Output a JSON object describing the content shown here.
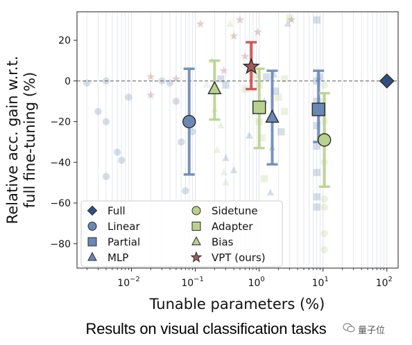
{
  "caption": "Results on visual classification tasks",
  "watermark": "量子位",
  "chart_data": {
    "type": "scatter",
    "title": "",
    "xlabel": "Tunable parameters (%)",
    "ylabel_line1": "Relative acc. gain w.r.t.",
    "ylabel_line2": "full fine-tuning (%)",
    "xscale": "log",
    "xlim": [
      0.0014,
      150
    ],
    "ylim": [
      -92,
      34
    ],
    "xticks": [
      0.01,
      0.1,
      1,
      10,
      100
    ],
    "xtick_labels": [
      {
        "base": "10",
        "exp": "−2"
      },
      {
        "base": "10",
        "exp": "−1"
      },
      {
        "base": "10",
        "exp": "0"
      },
      {
        "base": "10",
        "exp": "1"
      },
      {
        "base": "10",
        "exp": "2"
      }
    ],
    "yticks": [
      20,
      0,
      -20,
      -40,
      -60,
      -80
    ],
    "ytick_labels": [
      "20",
      "0",
      "−20",
      "−40",
      "−60",
      "−80"
    ],
    "reference_line": 0,
    "legend_placement": "lower-left",
    "legend": [
      {
        "label": "Full",
        "marker": "diamond",
        "color": "#2f4f80"
      },
      {
        "label": "Linear",
        "marker": "circle",
        "color": "#6a88b5"
      },
      {
        "label": "Partial",
        "marker": "square",
        "color": "#6a88b5"
      },
      {
        "label": "MLP",
        "marker": "triangle",
        "color": "#6a88b5"
      },
      {
        "label": "Sidetune",
        "marker": "circle",
        "color": "#b8d28e"
      },
      {
        "label": "Adapter",
        "marker": "square",
        "color": "#b8d28e"
      },
      {
        "label": "Bias",
        "marker": "triangle",
        "color": "#b8d28e"
      },
      {
        "label": "VPT (ours)",
        "marker": "star",
        "color": "#a05a5a"
      }
    ],
    "summary_points": [
      {
        "name": "Full",
        "x": 100,
        "y": 0,
        "err_low": 0,
        "err_high": 0,
        "marker": "diamond",
        "fill": "#2f4f80",
        "err_color": "#2f4f80"
      },
      {
        "name": "Linear",
        "x": 0.08,
        "y": -20,
        "err_low": -46,
        "err_high": 6,
        "marker": "circle",
        "fill": "#6a88b5",
        "err_color": "#6a88b5"
      },
      {
        "name": "Partial",
        "x": 8.5,
        "y": -14,
        "err_low": -30,
        "err_high": 5,
        "marker": "square",
        "fill": "#6a88b5",
        "err_color": "#6a88b5"
      },
      {
        "name": "MLP",
        "x": 1.6,
        "y": -18,
        "err_low": -41,
        "err_high": 5,
        "marker": "triangle",
        "fill": "#6a88b5",
        "err_color": "#6a88b5"
      },
      {
        "name": "Sidetune",
        "x": 10.5,
        "y": -29,
        "err_low": -52,
        "err_high": -6,
        "marker": "circle",
        "fill": "#b8d28e",
        "err_color": "#b8d28e"
      },
      {
        "name": "Adapter",
        "x": 1.0,
        "y": -13,
        "err_low": -33,
        "err_high": 6,
        "marker": "square",
        "fill": "#b8d28e",
        "err_color": "#b8d28e"
      },
      {
        "name": "Bias",
        "x": 0.2,
        "y": -4,
        "err_low": -19,
        "err_high": 10,
        "marker": "triangle",
        "fill": "#b8d28e",
        "err_color": "#b8d28e"
      },
      {
        "name": "VPT (ours)",
        "x": 0.75,
        "y": 7,
        "err_low": -4,
        "err_high": 19,
        "marker": "star",
        "fill": "#a05a5a",
        "err_color": "#d34a4a"
      }
    ],
    "faint_points": [
      {
        "method": "Linear",
        "x": 0.002,
        "y": -1
      },
      {
        "method": "Linear",
        "x": 0.004,
        "y": 0
      },
      {
        "method": "Linear",
        "x": 0.003,
        "y": -15
      },
      {
        "method": "Linear",
        "x": 0.004,
        "y": -20
      },
      {
        "method": "Linear",
        "x": 0.009,
        "y": -8
      },
      {
        "method": "Linear",
        "x": 0.006,
        "y": -35
      },
      {
        "method": "Linear",
        "x": 0.007,
        "y": -39
      },
      {
        "method": "Linear",
        "x": 0.004,
        "y": -47
      },
      {
        "method": "Linear",
        "x": 0.03,
        "y": 0
      },
      {
        "method": "Linear",
        "x": 0.04,
        "y": -1
      },
      {
        "method": "Linear",
        "x": 0.09,
        "y": -25
      },
      {
        "method": "Linear",
        "x": 0.06,
        "y": -30
      },
      {
        "method": "Linear",
        "x": 0.05,
        "y": -10
      },
      {
        "method": "Linear",
        "x": 0.07,
        "y": -54
      },
      {
        "method": "Partial",
        "x": 0.25,
        "y": 1
      },
      {
        "method": "Partial",
        "x": 0.3,
        "y": -2
      },
      {
        "method": "Partial",
        "x": 1.3,
        "y": 2
      },
      {
        "method": "Partial",
        "x": 1.8,
        "y": -5
      },
      {
        "method": "Partial",
        "x": 2.2,
        "y": -25
      },
      {
        "method": "Partial",
        "x": 8,
        "y": 30
      },
      {
        "method": "Partial",
        "x": 8,
        "y": 0
      },
      {
        "method": "Partial",
        "x": 8,
        "y": -10
      },
      {
        "method": "Partial",
        "x": 8,
        "y": -22
      },
      {
        "method": "Partial",
        "x": 8,
        "y": -32
      },
      {
        "method": "Partial",
        "x": 8,
        "y": -45
      },
      {
        "method": "Partial",
        "x": 8,
        "y": -57
      },
      {
        "method": "Partial",
        "x": 8,
        "y": -62
      },
      {
        "method": "Partial",
        "x": 8.8,
        "y": 2
      },
      {
        "method": "MLP",
        "x": 0.3,
        "y": -38
      },
      {
        "method": "MLP",
        "x": 0.4,
        "y": -44
      },
      {
        "method": "MLP",
        "x": 0.7,
        "y": -27
      },
      {
        "method": "MLP",
        "x": 1.2,
        "y": -10
      },
      {
        "method": "MLP",
        "x": 1.5,
        "y": -55
      },
      {
        "method": "MLP",
        "x": 1.6,
        "y": -33
      },
      {
        "method": "MLP",
        "x": 2.8,
        "y": 28
      },
      {
        "method": "MLP",
        "x": 1.7,
        "y": 3
      },
      {
        "method": "Sidetune",
        "x": 10.5,
        "y": -2
      },
      {
        "method": "Sidetune",
        "x": 10.5,
        "y": -20
      },
      {
        "method": "Sidetune",
        "x": 10.5,
        "y": -40
      },
      {
        "method": "Sidetune",
        "x": 10.5,
        "y": -58
      },
      {
        "method": "Sidetune",
        "x": 10.5,
        "y": -62
      },
      {
        "method": "Sidetune",
        "x": 10.5,
        "y": -75
      },
      {
        "method": "Sidetune",
        "x": 10.5,
        "y": -83
      },
      {
        "method": "Sidetune",
        "x": 9.5,
        "y": -10
      },
      {
        "method": "Adapter",
        "x": 0.9,
        "y": 3
      },
      {
        "method": "Adapter",
        "x": 1.0,
        "y": -2
      },
      {
        "method": "Adapter",
        "x": 1.0,
        "y": -20
      },
      {
        "method": "Adapter",
        "x": 1.1,
        "y": -28
      },
      {
        "method": "Adapter",
        "x": 1.2,
        "y": -48
      },
      {
        "method": "Adapter",
        "x": 2.5,
        "y": 1
      },
      {
        "method": "Adapter",
        "x": 2.5,
        "y": -15
      },
      {
        "method": "Adapter",
        "x": 3.0,
        "y": 31
      },
      {
        "method": "Adapter",
        "x": 2.0,
        "y": -8
      },
      {
        "method": "Adapter",
        "x": 0.6,
        "y": -4
      },
      {
        "method": "Bias",
        "x": 0.18,
        "y": 10
      },
      {
        "method": "Bias",
        "x": 0.2,
        "y": -14
      },
      {
        "method": "Bias",
        "x": 0.25,
        "y": -22
      },
      {
        "method": "Bias",
        "x": 0.22,
        "y": -34
      },
      {
        "method": "Bias",
        "x": 0.35,
        "y": 28
      },
      {
        "method": "Bias",
        "x": 0.28,
        "y": -45
      },
      {
        "method": "Bias",
        "x": 0.3,
        "y": -50
      },
      {
        "method": "Bias",
        "x": 0.15,
        "y": -2
      },
      {
        "method": "VPT (ours)",
        "x": 0.12,
        "y": 28
      },
      {
        "method": "VPT (ours)",
        "x": 0.5,
        "y": 30
      },
      {
        "method": "VPT (ours)",
        "x": 0.02,
        "y": -7
      },
      {
        "method": "VPT (ours)",
        "x": 0.02,
        "y": 2
      },
      {
        "method": "VPT (ours)",
        "x": 0.05,
        "y": 1
      },
      {
        "method": "VPT (ours)",
        "x": 0.6,
        "y": 12
      },
      {
        "method": "VPT (ours)",
        "x": 0.4,
        "y": 22
      },
      {
        "method": "VPT (ours)",
        "x": 0.28,
        "y": 5
      },
      {
        "method": "VPT (ours)",
        "x": 3.2,
        "y": 30
      },
      {
        "method": "VPT (ours)",
        "x": 0.95,
        "y": 24
      }
    ]
  }
}
